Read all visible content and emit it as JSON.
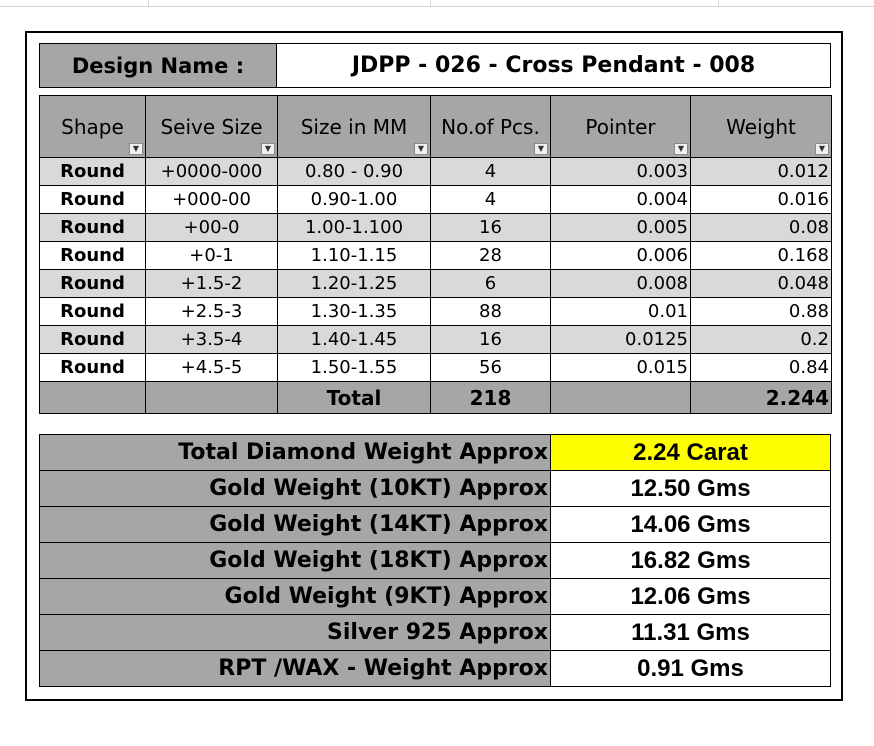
{
  "design": {
    "label": "Design Name :",
    "value": "JDPP - 026 - Cross Pendant - 008"
  },
  "table": {
    "headers": [
      "Shape",
      "Seive Size",
      "Size in MM",
      "No.of Pcs.",
      "Pointer",
      "Weight"
    ],
    "rows": [
      {
        "shape": "Round",
        "sieve": "+0000-000",
        "mm": "0.80 - 0.90",
        "pcs": "4",
        "pointer": "0.003",
        "weight": "0.012"
      },
      {
        "shape": "Round",
        "sieve": "+000-00",
        "mm": "0.90-1.00",
        "pcs": "4",
        "pointer": "0.004",
        "weight": "0.016"
      },
      {
        "shape": "Round",
        "sieve": "+00-0",
        "mm": "1.00-1.100",
        "pcs": "16",
        "pointer": "0.005",
        "weight": "0.08"
      },
      {
        "shape": "Round",
        "sieve": "+0-1",
        "mm": "1.10-1.15",
        "pcs": "28",
        "pointer": "0.006",
        "weight": "0.168"
      },
      {
        "shape": "Round",
        "sieve": "+1.5-2",
        "mm": "1.20-1.25",
        "pcs": "6",
        "pointer": "0.008",
        "weight": "0.048"
      },
      {
        "shape": "Round",
        "sieve": "+2.5-3",
        "mm": "1.30-1.35",
        "pcs": "88",
        "pointer": "0.01",
        "weight": "0.88"
      },
      {
        "shape": "Round",
        "sieve": "+3.5-4",
        "mm": "1.40-1.45",
        "pcs": "16",
        "pointer": "0.0125",
        "weight": "0.2"
      },
      {
        "shape": "Round",
        "sieve": "+4.5-5",
        "mm": "1.50-1.55",
        "pcs": "56",
        "pointer": "0.015",
        "weight": "0.84"
      }
    ],
    "total": {
      "label": "Total",
      "pcs": "218",
      "weight": "2.244"
    }
  },
  "summary": [
    {
      "label": "Total Diamond Weight Approx",
      "value": "2.24 Carat"
    },
    {
      "label": "Gold Weight (10KT) Approx",
      "value": "12.50 Gms"
    },
    {
      "label": "Gold Weight (14KT) Approx",
      "value": "14.06 Gms"
    },
    {
      "label": "Gold Weight (18KT) Approx",
      "value": "16.82 Gms"
    },
    {
      "label": "Gold Weight (9KT) Approx",
      "value": "12.06 Gms"
    },
    {
      "label": "Silver 925 Approx",
      "value": "11.31 Gms"
    },
    {
      "label": "RPT /WAX - Weight Approx",
      "value": "0.91 Gms"
    }
  ],
  "icons": {
    "filter": "dropdown-arrow-icon",
    "filter_active": "filter-funnel-icon"
  },
  "colors": {
    "header_gray": "#a6a6a6",
    "band_gray": "#d9d9d9",
    "highlight": "#ffff00"
  }
}
